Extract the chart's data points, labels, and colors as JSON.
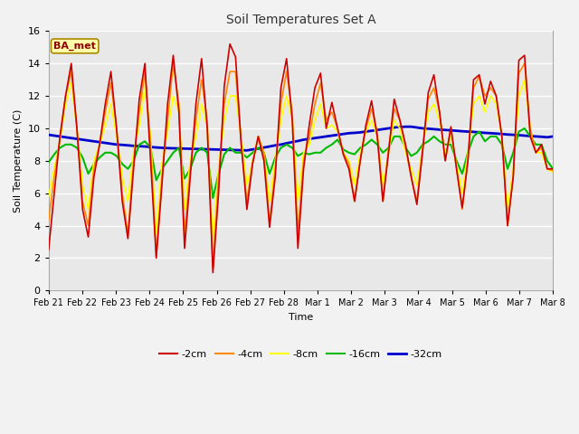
{
  "title": "Soil Temperatures Set A",
  "xlabel": "Time",
  "ylabel": "Soil Temperature (C)",
  "annotation": "BA_met",
  "ylim": [
    0,
    16
  ],
  "fig_facecolor": "#f2f2f2",
  "plot_bg_color": "#e8e8e8",
  "colors": {
    "-2cm": "#cc0000",
    "-4cm": "#ff8800",
    "-8cm": "#ffff00",
    "-16cm": "#00bb00",
    "-32cm": "#0000cc"
  },
  "tick_labels": [
    "Feb 21",
    "Feb 22",
    "Feb 23",
    "Feb 24",
    "Feb 25",
    "Feb 26",
    "Feb 27",
    "Feb 28",
    "Mar 1",
    "Mar 2",
    "Mar 3",
    "Mar 4",
    "Mar 5",
    "Mar 6",
    "Mar 7",
    "Mar 8"
  ],
  "yticks": [
    0,
    2,
    4,
    6,
    8,
    10,
    12,
    14,
    16
  ],
  "series": {
    "-2cm": [
      2.5,
      6.0,
      9.5,
      12.0,
      14.0,
      10.0,
      5.0,
      3.3,
      7.0,
      9.0,
      11.5,
      13.5,
      10.0,
      5.5,
      3.2,
      7.5,
      11.8,
      14.0,
      8.0,
      2.0,
      6.5,
      11.5,
      14.5,
      11.0,
      2.6,
      7.0,
      11.5,
      14.3,
      10.0,
      1.1,
      6.0,
      12.6,
      15.2,
      14.4,
      9.0,
      5.0,
      7.8,
      9.5,
      8.0,
      3.9,
      7.0,
      12.5,
      14.3,
      10.5,
      2.6,
      7.5,
      10.2,
      12.5,
      13.4,
      10.0,
      11.6,
      10.0,
      8.4,
      7.5,
      5.5,
      8.0,
      10.2,
      11.7,
      9.5,
      5.5,
      8.5,
      11.8,
      10.5,
      9.0,
      7.0,
      5.3,
      8.5,
      12.2,
      13.3,
      11.0,
      8.0,
      10.1,
      7.5,
      5.1,
      8.0,
      13.0,
      13.3,
      11.5,
      12.9,
      12.0,
      9.5,
      4.0,
      7.0,
      14.2,
      14.5,
      9.5,
      8.5,
      9.0,
      7.5,
      7.5
    ],
    "-4cm": [
      4.3,
      7.0,
      9.3,
      12.0,
      13.5,
      10.0,
      5.5,
      4.0,
      7.5,
      9.0,
      11.0,
      12.8,
      10.0,
      6.0,
      3.5,
      8.0,
      11.0,
      13.5,
      9.0,
      2.1,
      7.0,
      10.5,
      14.0,
      11.5,
      3.5,
      7.5,
      10.5,
      13.0,
      10.5,
      1.4,
      7.0,
      11.5,
      13.5,
      13.5,
      9.0,
      5.5,
      7.9,
      9.5,
      8.5,
      4.2,
      7.5,
      11.5,
      13.5,
      11.0,
      3.5,
      8.0,
      9.5,
      11.5,
      12.8,
      10.5,
      11.0,
      10.0,
      8.5,
      7.8,
      5.5,
      8.0,
      10.0,
      11.2,
      9.8,
      5.5,
      8.8,
      11.2,
      10.5,
      8.8,
      7.0,
      5.5,
      8.8,
      11.8,
      12.5,
      11.0,
      8.0,
      10.0,
      7.5,
      5.0,
      8.0,
      12.5,
      13.2,
      12.0,
      12.5,
      12.0,
      9.5,
      4.0,
      7.0,
      13.4,
      14.0,
      10.0,
      8.5,
      8.8,
      7.5,
      7.4
    ],
    "-8cm": [
      5.8,
      7.5,
      9.2,
      11.5,
      12.8,
      10.0,
      6.5,
      5.0,
      8.0,
      9.0,
      10.2,
      11.5,
      9.5,
      7.0,
      5.5,
      8.5,
      10.2,
      12.5,
      9.5,
      3.5,
      7.8,
      9.8,
      12.0,
      11.0,
      5.0,
      8.0,
      9.5,
      11.5,
      10.0,
      3.0,
      7.5,
      10.5,
      12.0,
      12.0,
      9.5,
      6.5,
      8.0,
      9.5,
      8.5,
      5.5,
      8.0,
      10.5,
      12.0,
      10.5,
      5.5,
      8.5,
      9.0,
      10.5,
      11.5,
      10.0,
      10.2,
      9.8,
      8.5,
      8.0,
      6.5,
      8.5,
      9.8,
      10.5,
      9.5,
      6.5,
      8.5,
      10.5,
      10.0,
      8.5,
      7.5,
      6.5,
      8.8,
      11.0,
      11.5,
      10.5,
      8.5,
      9.5,
      7.8,
      6.0,
      8.5,
      11.5,
      12.0,
      11.0,
      12.0,
      11.5,
      9.5,
      5.0,
      7.5,
      12.0,
      13.0,
      10.0,
      8.5,
      8.5,
      7.5,
      7.3
    ],
    "-16cm": [
      7.9,
      8.4,
      8.8,
      9.0,
      9.0,
      8.8,
      8.2,
      7.2,
      7.8,
      8.2,
      8.5,
      8.5,
      8.3,
      7.8,
      7.5,
      8.0,
      9.0,
      9.2,
      8.8,
      6.8,
      7.5,
      8.0,
      8.5,
      8.8,
      6.9,
      7.5,
      8.5,
      8.8,
      8.5,
      5.7,
      7.2,
      8.4,
      8.8,
      8.5,
      8.5,
      8.2,
      8.5,
      8.8,
      8.5,
      7.2,
      8.2,
      8.8,
      9.0,
      8.8,
      8.3,
      8.5,
      8.4,
      8.5,
      8.5,
      8.8,
      9.0,
      9.3,
      8.7,
      8.5,
      8.4,
      8.8,
      9.0,
      9.3,
      9.0,
      8.5,
      8.8,
      9.5,
      9.5,
      8.8,
      8.3,
      8.5,
      9.0,
      9.2,
      9.5,
      9.2,
      9.0,
      9.0,
      8.0,
      7.2,
      8.5,
      9.5,
      9.8,
      9.2,
      9.5,
      9.5,
      9.0,
      7.5,
      8.5,
      9.8,
      10.0,
      9.5,
      9.0,
      9.0,
      8.0,
      7.5
    ],
    "-32cm": [
      9.6,
      9.55,
      9.5,
      9.45,
      9.4,
      9.35,
      9.3,
      9.25,
      9.2,
      9.15,
      9.1,
      9.05,
      9.0,
      8.98,
      8.95,
      8.92,
      8.9,
      8.88,
      8.85,
      8.82,
      8.8,
      8.78,
      8.77,
      8.76,
      8.75,
      8.74,
      8.73,
      8.72,
      8.71,
      8.7,
      8.69,
      8.68,
      8.67,
      8.66,
      8.65,
      8.64,
      8.7,
      8.75,
      8.82,
      8.88,
      8.95,
      9.0,
      9.08,
      9.15,
      9.22,
      9.3,
      9.35,
      9.4,
      9.45,
      9.5,
      9.55,
      9.6,
      9.65,
      9.7,
      9.72,
      9.75,
      9.8,
      9.85,
      9.9,
      9.95,
      10.0,
      10.05,
      10.08,
      10.1,
      10.1,
      10.05,
      10.0,
      9.98,
      9.95,
      9.92,
      9.9,
      9.88,
      9.85,
      9.82,
      9.8,
      9.78,
      9.75,
      9.72,
      9.7,
      9.68,
      9.65,
      9.62,
      9.6,
      9.58,
      9.55,
      9.52,
      9.5,
      9.48,
      9.45,
      9.5
    ]
  }
}
